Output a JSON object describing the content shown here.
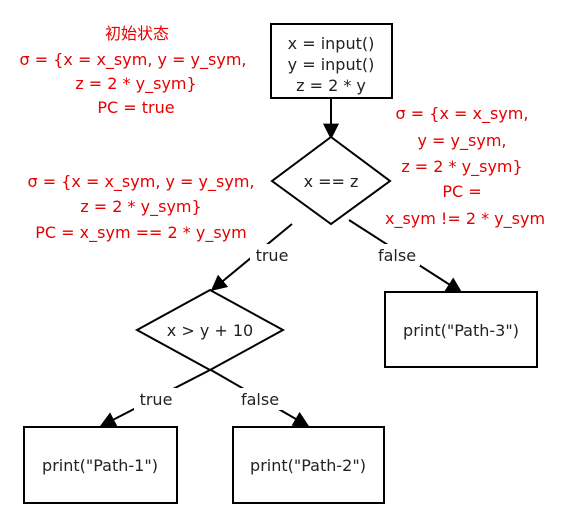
{
  "nodes": {
    "start": {
      "lines": [
        "x = input()",
        "y = input()",
        "z = 2 * y"
      ]
    },
    "cond1": {
      "label": "x == z"
    },
    "cond2": {
      "label": "x > y + 10"
    },
    "path1": {
      "label": "print(\"Path-1\")"
    },
    "path2": {
      "label": "print(\"Path-2\")"
    },
    "path3": {
      "label": "print(\"Path-3\")"
    }
  },
  "edges": {
    "cond1_true": "true",
    "cond1_false": "false",
    "cond2_true": "true",
    "cond2_false": "false"
  },
  "annotations": {
    "initial": [
      "初始状态",
      "σ = {x = x_sym, y = y_sym,",
      "z = 2 * y_sym}",
      "PC = true"
    ],
    "true_branch": [
      "σ = {x = x_sym, y = y_sym,",
      "z = 2 * y_sym}",
      "PC = x_sym == 2 * y_sym"
    ],
    "false_branch": [
      "σ = {x = x_sym,",
      "y = y_sym,",
      "z = 2 * y_sym}",
      "PC =",
      "x_sym != 2 * y_sym"
    ]
  },
  "colors": {
    "annotation": "#e60000",
    "stroke": "#000000"
  }
}
